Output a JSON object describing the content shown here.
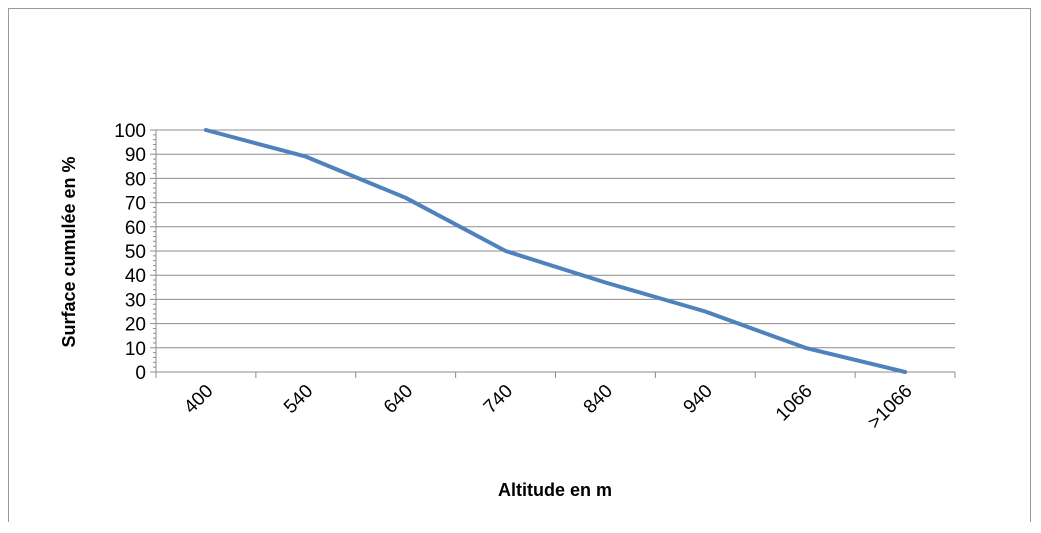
{
  "chart_data": {
    "type": "line",
    "title": "",
    "xlabel": "Altitude en m",
    "ylabel": "Surface cumulée en %",
    "categories": [
      "400",
      "540",
      "640",
      "740",
      "840",
      "940",
      "1066",
      ">1066"
    ],
    "series": [
      {
        "values": [
          100,
          89,
          72,
          50,
          37,
          25,
          10,
          0
        ]
      }
    ],
    "ylim": [
      0,
      100
    ],
    "yticks": [
      "0",
      "10",
      "20",
      "30",
      "40",
      "50",
      "60",
      "70",
      "80",
      "90",
      "100"
    ],
    "grid": true,
    "legend": "none",
    "colors": {
      "line": "#4f81bd",
      "grid": "#8c8c8c",
      "axis": "#8c8c8c"
    }
  }
}
